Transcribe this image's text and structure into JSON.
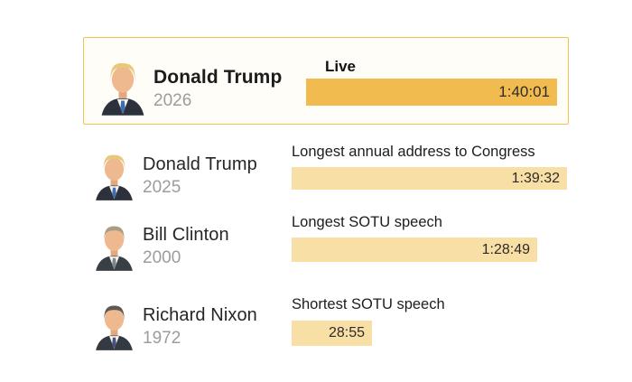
{
  "chart_data": {
    "type": "bar",
    "orientation": "horizontal",
    "title": "",
    "categories": [
      "Donald Trump 2026",
      "Donald Trump 2025",
      "Bill Clinton 2000",
      "Richard Nixon 1972"
    ],
    "values_hms": [
      "1:40:01",
      "1:39:32",
      "1:28:49",
      "28:55"
    ],
    "values_seconds": [
      6001,
      5972,
      5329,
      1735
    ],
    "bar_annotations": [
      "Live",
      "Longest annual address to Congress",
      "Longest SOTU speech",
      "Shortest SOTU speech"
    ],
    "highlighted_index": 0,
    "value_labels_inside_bars": true,
    "axes": "none",
    "legend": "none",
    "grid": false
  },
  "rows": [
    {
      "name": "Donald Trump",
      "year": "2026",
      "label": "Live",
      "time": "1:40:01",
      "highlighted": true
    },
    {
      "name": "Donald Trump",
      "year": "2025",
      "label": "Longest annual address to Congress",
      "time": "1:39:32",
      "highlighted": false
    },
    {
      "name": "Bill Clinton",
      "year": "2000",
      "label": "Longest SOTU speech",
      "time": "1:28:49",
      "highlighted": false
    },
    {
      "name": "Richard Nixon",
      "year": "1972",
      "label": "Shortest SOTU speech",
      "time": "28:55",
      "highlighted": false
    }
  ],
  "colors": {
    "live_bar": "#f1bb50",
    "bar": "#f8dfa6",
    "card_border": "#f0c355",
    "card_bg": "#fffdf7",
    "name_text": "#262626",
    "year_text": "#9c9c9c",
    "time_text": "#2e2b26"
  }
}
